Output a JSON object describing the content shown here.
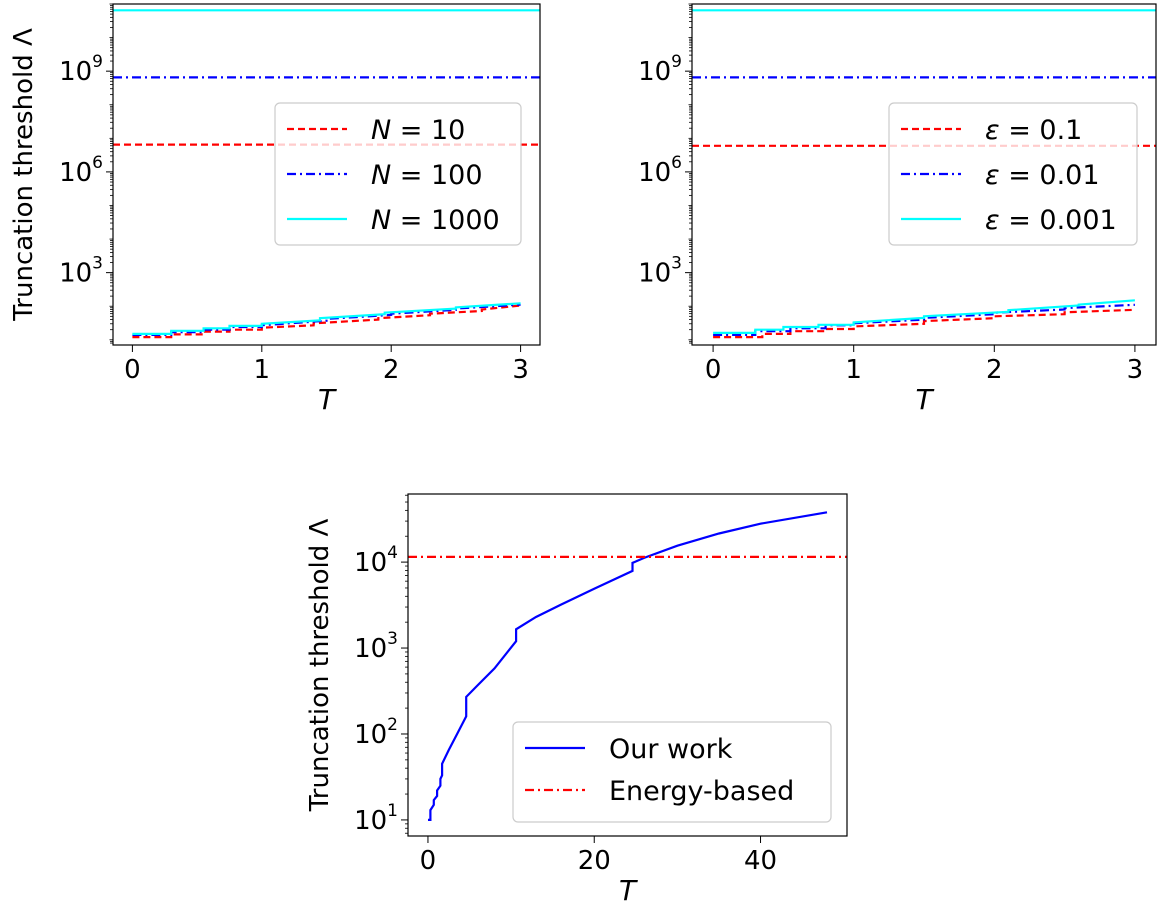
{
  "chart_data": [
    {
      "type": "line",
      "yscale": "log",
      "xlabel": "T",
      "ylabel": "Truncation threshold Λ",
      "xlim": [
        -0.15,
        3.15
      ],
      "ylim": [
        7,
        100000000000.0
      ],
      "xticks": [
        0,
        1,
        2,
        3
      ],
      "yticks": [
        {
          "value": 1000,
          "label": "10",
          "exp": "3"
        },
        {
          "value": 1000000,
          "label": "10",
          "exp": "6"
        },
        {
          "value": 1000000000,
          "label": "10",
          "exp": "9"
        }
      ],
      "legend": {
        "position": "center-right",
        "entries": [
          "N = 10",
          "N = 100",
          "N = 1000"
        ]
      },
      "series": [
        {
          "name": "N = 10",
          "color": "#ff0000",
          "dash": "dashed",
          "points": [
            [
              0,
              12
            ],
            [
              0.3,
              12
            ],
            [
              0.3,
              14.5
            ],
            [
              0.55,
              14.5
            ],
            [
              0.55,
              17.5
            ],
            [
              0.75,
              17.5
            ],
            [
              0.75,
              20
            ],
            [
              1.0,
              20
            ],
            [
              1.0,
              23
            ],
            [
              1.4,
              27
            ],
            [
              1.4,
              31
            ],
            [
              1.9,
              40
            ],
            [
              1.9,
              44
            ],
            [
              2.3,
              54
            ],
            [
              2.3,
              60
            ],
            [
              2.7,
              72
            ],
            [
              2.7,
              80
            ],
            [
              3.0,
              105
            ]
          ]
        },
        {
          "name": "N = 100",
          "color": "#0000ff",
          "dash": "dashdot",
          "points": [
            [
              0,
              14
            ],
            [
              0.3,
              14
            ],
            [
              0.3,
              17
            ],
            [
              0.55,
              17
            ],
            [
              0.55,
              20
            ],
            [
              0.75,
              20
            ],
            [
              0.75,
              24
            ],
            [
              1.0,
              24
            ],
            [
              1.0,
              27
            ],
            [
              1.5,
              37
            ],
            [
              1.5,
              42
            ],
            [
              2.0,
              55
            ],
            [
              2.0,
              60
            ],
            [
              2.5,
              78
            ],
            [
              2.5,
              85
            ],
            [
              3.0,
              112
            ]
          ]
        },
        {
          "name": "N = 1000",
          "color": "#00ffff",
          "dash": "solid",
          "points": [
            [
              0,
              15
            ],
            [
              0.3,
              15
            ],
            [
              0.3,
              18.5
            ],
            [
              0.55,
              18.5
            ],
            [
              0.55,
              22
            ],
            [
              0.75,
              22
            ],
            [
              0.75,
              26
            ],
            [
              1.0,
              26
            ],
            [
              1.0,
              30
            ],
            [
              1.45,
              38
            ],
            [
              1.45,
              44
            ],
            [
              1.95,
              58
            ],
            [
              1.95,
              64
            ],
            [
              2.5,
              85
            ],
            [
              2.5,
              92
            ],
            [
              3.0,
              122
            ]
          ]
        },
        {
          "name": "N = 10",
          "color": "#ff0000",
          "dash": "dashed",
          "points": [
            [
              -0.15,
              6500000
            ],
            [
              3.15,
              6500000
            ]
          ]
        },
        {
          "name": "N = 100",
          "color": "#0000ff",
          "dash": "dashdot",
          "points": [
            [
              -0.15,
              650000000
            ],
            [
              3.15,
              650000000
            ]
          ]
        },
        {
          "name": "N = 1000",
          "color": "#00ffff",
          "dash": "solid",
          "points": [
            [
              -0.15,
              65000000000
            ],
            [
              3.15,
              65000000000
            ]
          ]
        }
      ]
    },
    {
      "type": "line",
      "yscale": "log",
      "xlabel": "T",
      "ylabel": "",
      "xlim": [
        -0.15,
        3.15
      ],
      "ylim": [
        7,
        100000000000.0
      ],
      "xticks": [
        0,
        1,
        2,
        3
      ],
      "yticks": [
        {
          "value": 1000,
          "label": "10",
          "exp": "3"
        },
        {
          "value": 1000000,
          "label": "10",
          "exp": "6"
        },
        {
          "value": 1000000000,
          "label": "10",
          "exp": "9"
        }
      ],
      "legend": {
        "position": "center-right",
        "entries": [
          "ε = 0.1",
          "ε = 0.01",
          "ε = 0.001"
        ]
      },
      "series": [
        {
          "name": "ε = 0.1",
          "color": "#ff0000",
          "dash": "dashed",
          "points": [
            [
              0,
              12
            ],
            [
              0.35,
              12
            ],
            [
              0.35,
              15
            ],
            [
              0.55,
              15
            ],
            [
              0.55,
              18
            ],
            [
              0.8,
              18
            ],
            [
              0.8,
              21
            ],
            [
              1.0,
              21
            ],
            [
              1.0,
              25
            ],
            [
              1.5,
              30
            ],
            [
              1.5,
              36
            ],
            [
              2.0,
              44
            ],
            [
              2.0,
              50
            ],
            [
              2.5,
              58
            ],
            [
              2.5,
              66
            ],
            [
              3.0,
              78
            ]
          ]
        },
        {
          "name": "ε = 0.01",
          "color": "#0000ff",
          "dash": "dashdot",
          "points": [
            [
              0,
              14
            ],
            [
              0.3,
              14
            ],
            [
              0.3,
              18
            ],
            [
              0.55,
              18
            ],
            [
              0.55,
              22
            ],
            [
              0.8,
              22
            ],
            [
              0.8,
              27
            ],
            [
              1.0,
              27
            ],
            [
              1.0,
              31
            ],
            [
              1.5,
              40
            ],
            [
              1.5,
              45
            ],
            [
              2.0,
              58
            ],
            [
              2.0,
              64
            ],
            [
              2.5,
              80
            ],
            [
              2.5,
              88
            ],
            [
              3.0,
              110
            ]
          ]
        },
        {
          "name": "ε = 0.001",
          "color": "#00ffff",
          "dash": "solid",
          "points": [
            [
              0,
              16
            ],
            [
              0.3,
              16
            ],
            [
              0.3,
              20
            ],
            [
              0.5,
              20
            ],
            [
              0.5,
              24
            ],
            [
              0.75,
              24
            ],
            [
              0.75,
              28
            ],
            [
              1.0,
              28
            ],
            [
              1.0,
              33
            ],
            [
              1.5,
              45
            ],
            [
              1.5,
              50
            ],
            [
              2.1,
              68
            ],
            [
              2.1,
              76
            ],
            [
              2.6,
              105
            ],
            [
              2.6,
              112
            ],
            [
              3.0,
              150
            ]
          ]
        },
        {
          "name": "ε = 0.1",
          "color": "#ff0000",
          "dash": "dashed",
          "points": [
            [
              -0.15,
              6000000
            ],
            [
              3.15,
              6000000
            ]
          ]
        },
        {
          "name": "ε = 0.01",
          "color": "#0000ff",
          "dash": "dashdot",
          "points": [
            [
              -0.15,
              650000000
            ],
            [
              3.15,
              650000000
            ]
          ]
        },
        {
          "name": "ε = 0.001",
          "color": "#00ffff",
          "dash": "solid",
          "points": [
            [
              -0.15,
              65000000000
            ],
            [
              3.15,
              65000000000
            ]
          ]
        }
      ]
    },
    {
      "type": "line",
      "yscale": "log",
      "xlabel": "T",
      "ylabel": "Truncation threshold Λ",
      "xlim": [
        -2.4,
        50.4
      ],
      "ylim": [
        6.5,
        62000
      ],
      "xticks": [
        0,
        20,
        40
      ],
      "yticks": [
        {
          "value": 10,
          "label": "10",
          "exp": "1"
        },
        {
          "value": 100,
          "label": "10",
          "exp": "2"
        },
        {
          "value": 1000,
          "label": "10",
          "exp": "3"
        },
        {
          "value": 10000,
          "label": "10",
          "exp": "4"
        }
      ],
      "legend": {
        "position": "lower-right",
        "entries": [
          "Our work",
          "Energy-based"
        ]
      },
      "series": [
        {
          "name": "Our work",
          "color": "#0000ff",
          "dash": "solid",
          "points": [
            [
              0,
              10
            ],
            [
              0.3,
              10
            ],
            [
              0.3,
              13
            ],
            [
              0.7,
              15
            ],
            [
              0.7,
              17
            ],
            [
              1.1,
              19
            ],
            [
              1.1,
              22
            ],
            [
              1.5,
              25
            ],
            [
              1.5,
              30
            ],
            [
              1.7,
              33
            ],
            [
              1.7,
              45
            ],
            [
              2.5,
              65
            ],
            [
              3.5,
              100
            ],
            [
              4.6,
              160
            ],
            [
              4.6,
              270
            ],
            [
              6,
              370
            ],
            [
              8,
              580
            ],
            [
              10.6,
              1200
            ],
            [
              10.6,
              1650
            ],
            [
              13,
              2300
            ],
            [
              16,
              3200
            ],
            [
              20,
              4900
            ],
            [
              24.6,
              7900
            ],
            [
              24.6,
              9800
            ],
            [
              26,
              11200
            ],
            [
              30,
              15500
            ],
            [
              35,
              21500
            ],
            [
              40,
              28000
            ],
            [
              48,
              38000
            ]
          ]
        },
        {
          "name": "Energy-based",
          "color": "#ff0000",
          "dash": "dashdot",
          "points": [
            [
              -2.4,
              11500
            ],
            [
              50.4,
              11500
            ]
          ]
        }
      ]
    }
  ]
}
